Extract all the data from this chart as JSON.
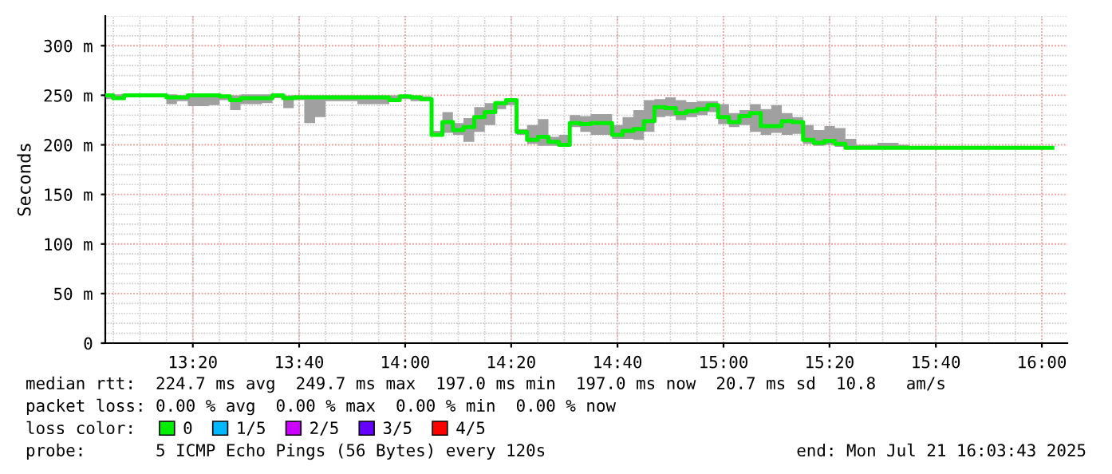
{
  "chart_data": {
    "type": "step",
    "ylabel": "Seconds",
    "x": [
      13.06,
      13.083,
      13.117,
      13.15,
      13.183,
      13.217,
      13.25,
      13.283,
      13.317,
      13.35,
      13.383,
      13.417,
      13.45,
      13.483,
      13.517,
      13.55,
      13.583,
      13.617,
      13.65,
      13.683,
      13.717,
      13.75,
      13.783,
      13.817,
      13.85,
      13.883,
      13.917,
      13.95,
      13.983,
      14.017,
      14.05,
      14.083,
      14.117,
      14.15,
      14.183,
      14.217,
      14.25,
      14.283,
      14.317,
      14.35,
      14.383,
      14.417,
      14.45,
      14.483,
      14.517,
      14.55,
      14.583,
      14.617,
      14.65,
      14.683,
      14.717,
      14.75,
      14.783,
      14.817,
      14.85,
      14.883,
      14.917,
      14.95,
      14.983,
      15.017,
      15.05,
      15.083,
      15.117,
      15.15,
      15.183,
      15.217,
      15.25,
      15.283,
      15.317,
      15.35,
      15.383,
      15.417,
      15.45,
      15.483,
      15.517,
      15.55,
      15.583,
      16.033
    ],
    "series": [
      {
        "name": "0",
        "color": "#00ee00",
        "values": [
          250,
          247,
          250,
          250,
          250,
          250,
          248,
          248,
          250,
          250,
          250,
          249,
          245,
          247,
          247,
          247,
          250,
          247,
          248,
          248,
          248,
          248,
          248,
          248,
          248,
          248,
          248,
          245,
          249,
          248,
          246,
          210,
          223,
          215,
          218,
          228,
          233,
          242,
          245,
          213,
          205,
          208,
          203,
          200,
          222,
          221,
          222,
          222,
          210,
          214,
          216,
          224,
          238,
          237,
          232,
          234,
          236,
          240,
          228,
          223,
          229,
          232,
          219,
          219,
          224,
          223,
          205,
          202,
          204,
          201,
          197,
          197,
          197,
          197,
          197,
          197,
          197,
          197
        ],
        "lower": [
          246,
          246,
          249,
          249,
          249,
          248,
          241,
          244,
          239,
          239,
          240,
          245,
          235,
          241,
          241,
          242,
          247,
          237,
          245,
          222,
          228,
          244,
          244,
          244,
          241,
          241,
          241,
          243,
          246,
          244,
          244,
          209,
          212,
          210,
          203,
          213,
          220,
          236,
          240,
          210,
          201,
          199,
          199,
          199,
          218,
          213,
          210,
          210,
          206,
          206,
          205,
          213,
          228,
          229,
          225,
          228,
          230,
          233,
          221,
          218,
          220,
          213,
          210,
          212,
          210,
          211,
          201,
          199,
          200,
          198,
          197,
          197,
          197,
          197,
          197,
          197,
          197,
          197
        ],
        "upper": [
          251,
          251,
          251,
          251,
          251,
          251,
          251,
          250,
          251,
          251,
          251,
          250,
          250,
          251,
          251,
          251,
          251,
          250,
          250,
          250,
          250,
          250,
          250,
          250,
          250,
          250,
          250,
          250,
          250,
          250,
          249,
          214,
          233,
          222,
          227,
          238,
          242,
          244,
          246,
          216,
          220,
          226,
          208,
          210,
          230,
          229,
          231,
          231,
          220,
          228,
          235,
          245,
          246,
          248,
          245,
          243,
          244,
          244,
          241,
          232,
          235,
          241,
          236,
          240,
          232,
          228,
          220,
          215,
          219,
          217,
          206,
          200,
          200,
          202,
          202,
          200,
          197,
          197
        ]
      },
      {
        "name": "1/5",
        "color": "#00b8ff",
        "values": [
          null,
          null,
          null,
          null,
          null,
          null,
          null,
          null,
          null,
          null,
          null,
          null,
          null,
          null,
          null,
          null,
          null,
          null,
          null,
          null,
          null,
          null,
          null,
          null,
          null,
          null,
          null,
          null,
          null,
          null,
          null,
          null,
          null,
          null,
          null,
          null,
          null,
          null,
          null,
          null,
          null,
          null,
          null,
          null,
          null,
          null,
          null,
          null,
          null,
          null,
          null,
          null,
          null,
          null,
          null,
          null,
          null,
          null,
          null,
          null,
          null,
          null,
          null,
          null,
          null,
          null,
          null,
          null,
          null,
          null,
          null,
          null,
          null,
          null,
          null,
          null,
          null,
          null
        ]
      },
      {
        "name": "2/5",
        "color": "#cc00ff",
        "values": [
          null,
          null,
          null,
          null,
          null,
          null,
          null,
          null,
          null,
          null,
          null,
          null,
          null,
          null,
          null,
          null,
          null,
          null,
          null,
          null,
          null,
          null,
          null,
          null,
          null,
          null,
          null,
          null,
          null,
          null,
          null,
          null,
          null,
          null,
          null,
          null,
          null,
          null,
          null,
          null,
          null,
          null,
          null,
          null,
          null,
          null,
          null,
          null,
          null,
          null,
          null,
          null,
          null,
          null,
          null,
          null,
          null,
          null,
          null,
          null,
          null,
          null,
          null,
          null,
          null,
          null,
          null,
          null,
          null,
          null,
          null,
          null,
          null,
          null,
          null,
          null,
          null,
          null
        ]
      },
      {
        "name": "3/5",
        "color": "#6600ff",
        "values": [
          null,
          null,
          null,
          null,
          null,
          null,
          null,
          null,
          null,
          null,
          null,
          null,
          null,
          null,
          null,
          null,
          null,
          null,
          null,
          null,
          null,
          null,
          null,
          null,
          null,
          null,
          null,
          null,
          null,
          null,
          null,
          null,
          null,
          null,
          null,
          null,
          null,
          null,
          null,
          null,
          null,
          null,
          null,
          null,
          null,
          null,
          null,
          null,
          null,
          null,
          null,
          null,
          null,
          null,
          null,
          null,
          null,
          null,
          null,
          null,
          null,
          null,
          null,
          null,
          null,
          null,
          null,
          null,
          null,
          null,
          null,
          null,
          null,
          null,
          null,
          null,
          null,
          null
        ]
      },
      {
        "name": "4/5",
        "color": "#ff0000",
        "values": [
          null,
          null,
          null,
          null,
          null,
          null,
          null,
          null,
          null,
          null,
          null,
          null,
          null,
          null,
          null,
          null,
          null,
          null,
          null,
          null,
          null,
          null,
          null,
          null,
          null,
          null,
          null,
          null,
          null,
          null,
          null,
          null,
          null,
          null,
          null,
          null,
          null,
          null,
          null,
          null,
          null,
          null,
          null,
          null,
          null,
          null,
          null,
          null,
          null,
          null,
          null,
          null,
          null,
          null,
          null,
          null,
          null,
          null,
          null,
          null,
          null,
          null,
          null,
          null,
          null,
          null,
          null,
          null,
          null,
          null,
          null,
          null,
          null,
          null,
          null,
          null,
          null,
          null
        ]
      }
    ],
    "legend": "bottom",
    "legend_title": "loss color:",
    "xlim": [
      13.058,
      16.08
    ],
    "xticks": [
      {
        "value": 13.333,
        "label": "13:20"
      },
      {
        "value": 13.667,
        "label": "13:40"
      },
      {
        "value": 14,
        "label": "14:00"
      },
      {
        "value": 14.333,
        "label": "14:20"
      },
      {
        "value": 14.667,
        "label": "14:40"
      },
      {
        "value": 15,
        "label": "15:00"
      },
      {
        "value": 15.333,
        "label": "15:20"
      },
      {
        "value": 15.667,
        "label": "15:40"
      },
      {
        "value": 16,
        "label": "16:00"
      }
    ],
    "ylim": [
      0,
      330
    ],
    "yticks": [
      0,
      {
        "value": 50,
        "label": "50 m"
      },
      {
        "value": 100,
        "label": "100 m"
      },
      {
        "value": 150,
        "label": "150 m"
      },
      {
        "value": 200,
        "label": "200 m"
      },
      {
        "value": 250,
        "label": "250 m"
      },
      {
        "value": 300,
        "label": "300 m"
      }
    ],
    "grid": true,
    "annotations": [
      "median rtt:  224.7 ms avg  249.7 ms max  197.0 ms min  197.0 ms now  20.7 ms sd  10.8   am/s",
      "packet loss: 0.00 % avg  0.00 % max  0.00 % min  0.00 % now",
      "probe:       5 ICMP Echo Pings (56 Bytes) every 120s",
      "end: Mon Jul 21 16:03:43 2025"
    ]
  }
}
